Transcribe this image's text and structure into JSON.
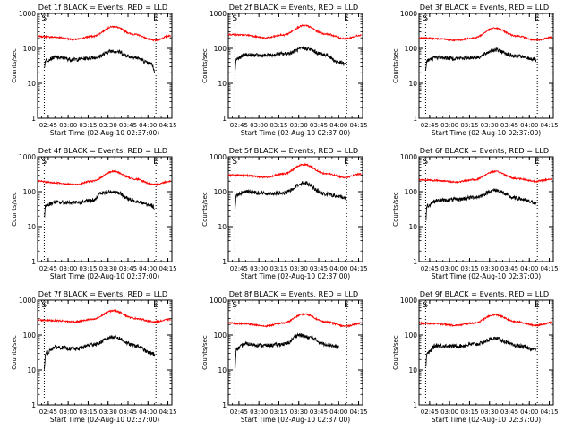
{
  "chart_data": [
    {
      "type": "line",
      "title": "Det 1f BLACK = Events, RED = LLD",
      "xlabel": "Start Time (02-Aug-10 02:37:00)",
      "ylabel": "Counts/sec",
      "yscale": "log",
      "ylim": [
        1,
        1000
      ],
      "xlim": [
        "02:37",
        "04:18"
      ],
      "xticks": [
        "02:45",
        "03:00",
        "03:15",
        "03:30",
        "03:45",
        "04:00",
        "04:15"
      ],
      "yticks": [
        "1",
        "10",
        "100",
        "1000"
      ],
      "markers": [
        {
          "label": "S",
          "time": "02:42"
        },
        {
          "label": "E",
          "time": "04:06"
        }
      ],
      "series": [
        {
          "color": "#ff0000",
          "values": [
            [
              "02:37",
              220
            ],
            [
              "02:50",
              210
            ],
            [
              "03:05",
              180
            ],
            [
              "03:18",
              220
            ],
            [
              "03:34",
              420
            ],
            [
              "03:50",
              250
            ],
            [
              "04:05",
              170
            ],
            [
              "04:17",
              230
            ]
          ]
        },
        {
          "color": "#000000",
          "values": [
            [
              "02:42",
              30
            ],
            [
              "02:43",
              45
            ],
            [
              "02:50",
              55
            ],
            [
              "03:05",
              48
            ],
            [
              "03:20",
              55
            ],
            [
              "03:34",
              85
            ],
            [
              "03:50",
              55
            ],
            [
              "04:03",
              35
            ],
            [
              "04:05",
              22
            ]
          ]
        }
      ]
    },
    {
      "type": "line",
      "title": "Det 2f BLACK = Events, RED = LLD",
      "xlabel": "Start Time (02-Aug-10 02:37:00)",
      "ylabel": "Counts/sec",
      "yscale": "log",
      "ylim": [
        1,
        1000
      ],
      "xlim": [
        "02:37",
        "04:18"
      ],
      "xticks": [
        "02:45",
        "03:00",
        "03:15",
        "03:30",
        "03:45",
        "04:00",
        "04:15"
      ],
      "yticks": [
        "1",
        "10",
        "100",
        "1000"
      ],
      "markers": [
        {
          "label": "S",
          "time": "02:42"
        },
        {
          "label": "E",
          "time": "04:06"
        }
      ],
      "series": [
        {
          "color": "#ff0000",
          "values": [
            [
              "02:37",
              250
            ],
            [
              "02:50",
              240
            ],
            [
              "03:05",
              200
            ],
            [
              "03:18",
              240
            ],
            [
              "03:34",
              450
            ],
            [
              "03:50",
              260
            ],
            [
              "04:05",
              190
            ],
            [
              "04:17",
              240
            ]
          ]
        },
        {
          "color": "#000000",
          "values": [
            [
              "02:42",
              25
            ],
            [
              "02:43",
              50
            ],
            [
              "02:50",
              65
            ],
            [
              "03:05",
              62
            ],
            [
              "03:20",
              70
            ],
            [
              "03:34",
              100
            ],
            [
              "03:50",
              65
            ],
            [
              "04:00",
              40
            ],
            [
              "04:05",
              35
            ]
          ]
        }
      ]
    },
    {
      "type": "line",
      "title": "Det 3f BLACK = Events, RED = LLD",
      "xlabel": "Start Time (02-Aug-10 02:37:00)",
      "ylabel": "Counts/sec",
      "yscale": "log",
      "ylim": [
        1,
        1000
      ],
      "xlim": [
        "02:37",
        "04:18"
      ],
      "xticks": [
        "02:45",
        "03:00",
        "03:15",
        "03:30",
        "03:45",
        "04:00",
        "04:15"
      ],
      "yticks": [
        "1",
        "10",
        "100",
        "1000"
      ],
      "markers": [
        {
          "label": "S",
          "time": "02:42"
        },
        {
          "label": "E",
          "time": "04:06"
        }
      ],
      "series": [
        {
          "color": "#ff0000",
          "values": [
            [
              "02:37",
              200
            ],
            [
              "02:50",
              190
            ],
            [
              "03:05",
              170
            ],
            [
              "03:18",
              200
            ],
            [
              "03:34",
              380
            ],
            [
              "03:50",
              230
            ],
            [
              "04:05",
              170
            ],
            [
              "04:17",
              210
            ]
          ]
        },
        {
          "color": "#000000",
          "values": [
            [
              "02:42",
              25
            ],
            [
              "02:43",
              45
            ],
            [
              "02:50",
              55
            ],
            [
              "03:05",
              52
            ],
            [
              "03:20",
              55
            ],
            [
              "03:34",
              90
            ],
            [
              "03:50",
              60
            ],
            [
              "04:03",
              50
            ],
            [
              "04:05",
              45
            ]
          ]
        }
      ]
    },
    {
      "type": "line",
      "title": "Det 4f BLACK = Events, RED = LLD",
      "xlabel": "Start Time (02-Aug-10 02:37:00)",
      "ylabel": "Counts/sec",
      "yscale": "log",
      "ylim": [
        1,
        1000
      ],
      "xlim": [
        "02:37",
        "04:18"
      ],
      "xticks": [
        "02:45",
        "03:00",
        "03:15",
        "03:30",
        "03:45",
        "04:00",
        "04:15"
      ],
      "yticks": [
        "1",
        "10",
        "100",
        "1000"
      ],
      "markers": [
        {
          "label": "S",
          "time": "02:42"
        },
        {
          "label": "E",
          "time": "04:06"
        }
      ],
      "series": [
        {
          "color": "#ff0000",
          "values": [
            [
              "02:37",
              200
            ],
            [
              "02:50",
              180
            ],
            [
              "03:05",
              160
            ],
            [
              "03:18",
              200
            ],
            [
              "03:34",
              380
            ],
            [
              "03:50",
              230
            ],
            [
              "04:05",
              160
            ],
            [
              "04:17",
              200
            ]
          ]
        },
        {
          "color": "#000000",
          "values": [
            [
              "02:42",
              20
            ],
            [
              "02:43",
              40
            ],
            [
              "02:50",
              50
            ],
            [
              "03:05",
              48
            ],
            [
              "03:18",
              55
            ],
            [
              "03:25",
              90
            ],
            [
              "03:34",
              100
            ],
            [
              "03:50",
              55
            ],
            [
              "04:03",
              40
            ],
            [
              "04:05",
              35
            ]
          ]
        }
      ]
    },
    {
      "type": "line",
      "title": "Det 5f BLACK = Events, RED = LLD",
      "xlabel": "Start Time (02-Aug-10 02:37:00)",
      "ylabel": "Counts/sec",
      "yscale": "log",
      "ylim": [
        1,
        1000
      ],
      "xlim": [
        "02:37",
        "04:18"
      ],
      "xticks": [
        "02:45",
        "03:00",
        "03:15",
        "03:30",
        "03:45",
        "04:00",
        "04:15"
      ],
      "yticks": [
        "1",
        "10",
        "100",
        "1000"
      ],
      "markers": [
        {
          "label": "S",
          "time": "02:42"
        },
        {
          "label": "E",
          "time": "04:06"
        }
      ],
      "series": [
        {
          "color": "#ff0000",
          "values": [
            [
              "02:37",
              300
            ],
            [
              "02:50",
              290
            ],
            [
              "03:05",
              260
            ],
            [
              "03:18",
              320
            ],
            [
              "03:34",
              600
            ],
            [
              "03:50",
              330
            ],
            [
              "04:05",
              260
            ],
            [
              "04:17",
              320
            ]
          ]
        },
        {
          "color": "#000000",
          "values": [
            [
              "02:42",
              30
            ],
            [
              "02:43",
              80
            ],
            [
              "02:50",
              100
            ],
            [
              "03:05",
              90
            ],
            [
              "03:18",
              90
            ],
            [
              "03:34",
              180
            ],
            [
              "03:50",
              85
            ],
            [
              "04:03",
              70
            ],
            [
              "04:05",
              65
            ]
          ]
        }
      ]
    },
    {
      "type": "line",
      "title": "Det 6f BLACK = Events, RED = LLD",
      "xlabel": "Start Time (02-Aug-10 02:37:00)",
      "ylabel": "Counts/sec",
      "yscale": "log",
      "ylim": [
        1,
        1000
      ],
      "xlim": [
        "02:37",
        "04:18"
      ],
      "xticks": [
        "02:45",
        "03:00",
        "03:15",
        "03:30",
        "03:45",
        "04:00",
        "04:15"
      ],
      "yticks": [
        "1",
        "10",
        "100",
        "1000"
      ],
      "markers": [
        {
          "label": "S",
          "time": "02:42"
        },
        {
          "label": "E",
          "time": "04:06"
        }
      ],
      "series": [
        {
          "color": "#ff0000",
          "values": [
            [
              "02:37",
              220
            ],
            [
              "02:50",
              210
            ],
            [
              "03:05",
              190
            ],
            [
              "03:18",
              220
            ],
            [
              "03:34",
              380
            ],
            [
              "03:50",
              240
            ],
            [
              "04:05",
              200
            ],
            [
              "04:17",
              230
            ]
          ]
        },
        {
          "color": "#000000",
          "values": [
            [
              "02:42",
              15
            ],
            [
              "02:43",
              40
            ],
            [
              "02:50",
              55
            ],
            [
              "03:05",
              60
            ],
            [
              "03:20",
              70
            ],
            [
              "03:34",
              110
            ],
            [
              "03:50",
              65
            ],
            [
              "04:03",
              50
            ],
            [
              "04:05",
              45
            ]
          ]
        }
      ]
    },
    {
      "type": "line",
      "title": "Det 7f BLACK = Events, RED = LLD",
      "xlabel": "Start Time (02-Aug-10 02:37:00)",
      "ylabel": "Counts/sec",
      "yscale": "log",
      "ylim": [
        1,
        1000
      ],
      "xlim": [
        "02:37",
        "04:18"
      ],
      "xticks": [
        "02:45",
        "03:00",
        "03:15",
        "03:30",
        "03:45",
        "04:00",
        "04:15"
      ],
      "yticks": [
        "1",
        "10",
        "100",
        "1000"
      ],
      "markers": [
        {
          "label": "S",
          "time": "02:42"
        },
        {
          "label": "E",
          "time": "04:06"
        }
      ],
      "series": [
        {
          "color": "#ff0000",
          "values": [
            [
              "02:37",
              270
            ],
            [
              "02:50",
              260
            ],
            [
              "03:05",
              240
            ],
            [
              "03:18",
              280
            ],
            [
              "03:34",
              500
            ],
            [
              "03:50",
              300
            ],
            [
              "04:05",
              240
            ],
            [
              "04:17",
              280
            ]
          ]
        },
        {
          "color": "#000000",
          "values": [
            [
              "02:42",
              10
            ],
            [
              "02:43",
              30
            ],
            [
              "02:50",
              45
            ],
            [
              "03:05",
              40
            ],
            [
              "03:20",
              55
            ],
            [
              "03:34",
              90
            ],
            [
              "03:50",
              50
            ],
            [
              "04:03",
              30
            ],
            [
              "04:05",
              28
            ]
          ]
        }
      ]
    },
    {
      "type": "line",
      "title": "Det 8f BLACK = Events, RED = LLD",
      "xlabel": "Start Time (02-Aug-10 02:37:00)",
      "ylabel": "Counts/sec",
      "yscale": "log",
      "ylim": [
        1,
        1000
      ],
      "xlim": [
        "02:37",
        "04:18"
      ],
      "xticks": [
        "02:45",
        "03:00",
        "03:15",
        "03:30",
        "03:45",
        "04:00",
        "04:15"
      ],
      "yticks": [
        "1",
        "10",
        "100",
        "1000"
      ],
      "markers": [
        {
          "label": "S",
          "time": "02:42"
        },
        {
          "label": "E",
          "time": "04:06"
        }
      ],
      "series": [
        {
          "color": "#ff0000",
          "values": [
            [
              "02:37",
              220
            ],
            [
              "02:50",
              210
            ],
            [
              "03:05",
              180
            ],
            [
              "03:18",
              220
            ],
            [
              "03:34",
              400
            ],
            [
              "03:50",
              240
            ],
            [
              "04:05",
              180
            ],
            [
              "04:17",
              220
            ]
          ]
        },
        {
          "color": "#000000",
          "values": [
            [
              "02:42",
              10
            ],
            [
              "02:43",
              40
            ],
            [
              "02:50",
              55
            ],
            [
              "03:05",
              50
            ],
            [
              "03:20",
              55
            ],
            [
              "03:30",
              100
            ],
            [
              "03:38",
              85
            ],
            [
              "03:50",
              55
            ],
            [
              "04:00",
              45
            ]
          ]
        }
      ]
    },
    {
      "type": "line",
      "title": "Det 9f BLACK = Events, RED = LLD",
      "xlabel": "Start Time (02-Aug-10 02:37:00)",
      "ylabel": "Counts/sec",
      "yscale": "log",
      "ylim": [
        1,
        1000
      ],
      "xlim": [
        "02:37",
        "04:18"
      ],
      "xticks": [
        "02:45",
        "03:00",
        "03:15",
        "03:30",
        "03:45",
        "04:00",
        "04:15"
      ],
      "yticks": [
        "1",
        "10",
        "100",
        "1000"
      ],
      "markers": [
        {
          "label": "S",
          "time": "02:42"
        },
        {
          "label": "E",
          "time": "04:06"
        }
      ],
      "series": [
        {
          "color": "#ff0000",
          "values": [
            [
              "02:37",
              220
            ],
            [
              "02:50",
              210
            ],
            [
              "03:05",
              190
            ],
            [
              "03:18",
              220
            ],
            [
              "03:34",
              380
            ],
            [
              "03:50",
              240
            ],
            [
              "04:05",
              190
            ],
            [
              "04:17",
              230
            ]
          ]
        },
        {
          "color": "#000000",
          "values": [
            [
              "02:42",
              12
            ],
            [
              "02:43",
              30
            ],
            [
              "02:50",
              50
            ],
            [
              "03:05",
              48
            ],
            [
              "03:20",
              55
            ],
            [
              "03:34",
              80
            ],
            [
              "03:50",
              50
            ],
            [
              "04:03",
              40
            ],
            [
              "04:05",
              35
            ]
          ]
        }
      ]
    }
  ]
}
